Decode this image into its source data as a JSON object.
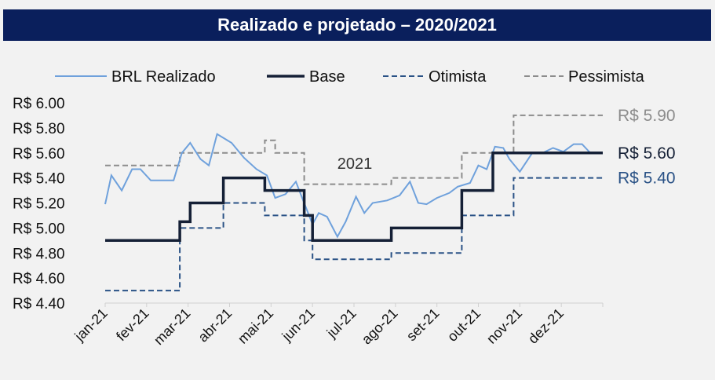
{
  "chart_data": {
    "type": "line",
    "title": "Realizado e projetado – 2020/2021",
    "annotation": "2021",
    "x_labels": [
      "jan-21",
      "fev-21",
      "mar-21",
      "abr-21",
      "mai-21",
      "jun-21",
      "jul-21",
      "ago-21",
      "set-21",
      "out-21",
      "nov-21",
      "dez-21"
    ],
    "x_range": [
      0,
      12
    ],
    "ylim": [
      4.4,
      6.0
    ],
    "y_ticks": [
      4.4,
      4.6,
      4.8,
      5.0,
      5.2,
      5.4,
      5.6,
      5.8,
      6.0
    ],
    "y_tick_labels": [
      "R$ 4.40",
      "R$ 4.60",
      "R$ 4.80",
      "R$ 5.00",
      "R$ 5.20",
      "R$ 5.40",
      "R$ 5.60",
      "R$ 5.80",
      "R$ 6.00"
    ],
    "legend_position": "top",
    "series": [
      {
        "name": "BRL Realizado",
        "style": "solid",
        "color": "#6fa1dc",
        "points": [
          [
            0,
            5.19
          ],
          [
            0.15,
            5.42
          ],
          [
            0.4,
            5.3
          ],
          [
            0.65,
            5.47
          ],
          [
            0.85,
            5.47
          ],
          [
            1.1,
            5.38
          ],
          [
            1.3,
            5.38
          ],
          [
            1.65,
            5.38
          ],
          [
            1.85,
            5.6
          ],
          [
            2.05,
            5.68
          ],
          [
            2.3,
            5.55
          ],
          [
            2.5,
            5.5
          ],
          [
            2.7,
            5.75
          ],
          [
            2.85,
            5.72
          ],
          [
            3.05,
            5.68
          ],
          [
            3.35,
            5.56
          ],
          [
            3.65,
            5.47
          ],
          [
            3.9,
            5.42
          ],
          [
            4.1,
            5.24
          ],
          [
            4.35,
            5.27
          ],
          [
            4.6,
            5.37
          ],
          [
            4.75,
            5.24
          ],
          [
            5.0,
            5.03
          ],
          [
            5.15,
            5.12
          ],
          [
            5.35,
            5.09
          ],
          [
            5.6,
            4.93
          ],
          [
            5.8,
            5.05
          ],
          [
            6.05,
            5.25
          ],
          [
            6.25,
            5.12
          ],
          [
            6.45,
            5.2
          ],
          [
            6.8,
            5.22
          ],
          [
            7.1,
            5.26
          ],
          [
            7.35,
            5.37
          ],
          [
            7.55,
            5.2
          ],
          [
            7.75,
            5.19
          ],
          [
            8.0,
            5.24
          ],
          [
            8.3,
            5.28
          ],
          [
            8.5,
            5.33
          ],
          [
            8.8,
            5.36
          ],
          [
            9.0,
            5.5
          ],
          [
            9.2,
            5.47
          ],
          [
            9.4,
            5.65
          ],
          [
            9.6,
            5.64
          ],
          [
            9.75,
            5.55
          ],
          [
            10.0,
            5.45
          ],
          [
            10.3,
            5.6
          ],
          [
            10.55,
            5.6
          ],
          [
            10.8,
            5.64
          ],
          [
            11.05,
            5.61
          ],
          [
            11.3,
            5.67
          ],
          [
            11.5,
            5.67
          ],
          [
            11.7,
            5.6
          ],
          [
            12.0,
            5.6
          ]
        ]
      },
      {
        "name": "Base",
        "style": "solid-thick",
        "color": "#152036",
        "points": [
          [
            0,
            4.9
          ],
          [
            1.8,
            4.9
          ],
          [
            1.8,
            5.05
          ],
          [
            2.05,
            5.05
          ],
          [
            2.05,
            5.2
          ],
          [
            2.85,
            5.2
          ],
          [
            2.85,
            5.4
          ],
          [
            3.85,
            5.4
          ],
          [
            3.85,
            5.3
          ],
          [
            4.8,
            5.3
          ],
          [
            4.8,
            5.1
          ],
          [
            5.0,
            5.1
          ],
          [
            5.0,
            4.9
          ],
          [
            6.9,
            4.9
          ],
          [
            6.9,
            5.0
          ],
          [
            8.6,
            5.0
          ],
          [
            8.6,
            5.3
          ],
          [
            9.35,
            5.3
          ],
          [
            9.35,
            5.6
          ],
          [
            12.0,
            5.6
          ]
        ],
        "end_label": "R$ 5.60"
      },
      {
        "name": "Otimista",
        "style": "dashed",
        "color": "#2a5286",
        "points": [
          [
            0,
            4.5
          ],
          [
            1.8,
            4.5
          ],
          [
            1.8,
            5.0
          ],
          [
            2.85,
            5.0
          ],
          [
            2.85,
            5.2
          ],
          [
            3.85,
            5.2
          ],
          [
            3.85,
            5.1
          ],
          [
            4.8,
            5.1
          ],
          [
            4.8,
            4.9
          ],
          [
            5.0,
            4.9
          ],
          [
            5.0,
            4.75
          ],
          [
            6.9,
            4.75
          ],
          [
            6.9,
            4.8
          ],
          [
            8.6,
            4.8
          ],
          [
            8.6,
            5.1
          ],
          [
            9.85,
            5.1
          ],
          [
            9.85,
            5.4
          ],
          [
            12.0,
            5.4
          ]
        ],
        "end_label": "R$ 5.40"
      },
      {
        "name": "Pessimista",
        "style": "dashed",
        "color": "#8c8c8c",
        "points": [
          [
            0,
            5.5
          ],
          [
            1.8,
            5.5
          ],
          [
            1.8,
            5.6
          ],
          [
            3.85,
            5.6
          ],
          [
            3.85,
            5.7
          ],
          [
            4.1,
            5.7
          ],
          [
            4.1,
            5.6
          ],
          [
            4.8,
            5.6
          ],
          [
            4.8,
            5.35
          ],
          [
            6.9,
            5.35
          ],
          [
            6.9,
            5.4
          ],
          [
            8.6,
            5.4
          ],
          [
            8.6,
            5.6
          ],
          [
            9.85,
            5.6
          ],
          [
            9.85,
            5.9
          ],
          [
            12.0,
            5.9
          ]
        ],
        "end_label": "R$ 5.90"
      }
    ]
  }
}
